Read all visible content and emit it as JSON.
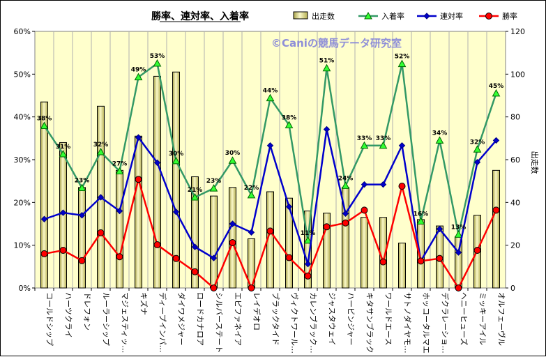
{
  "chart_data": {
    "type": "bar+line",
    "title": "勝率、連対率、入着率",
    "watermark": "©Caniの競馬データ研究室",
    "categories": [
      "コールドシップ",
      "ハーツクライ",
      "ドレフォン",
      "ルーラーシップ",
      "マジェスティッ…",
      "キズナ",
      "ディープインパ…",
      "ダイワメジャー",
      "ロードカナロア",
      "シルバーステート",
      "エピファネイア",
      "レイデオロ",
      "ブラックタイド",
      "ヴィクトワール…",
      "カレンブラック…",
      "ジャスタウェイ",
      "ハービンジャー",
      "キタサンブラック",
      "ワールドエース",
      "サトノダイヤモ…",
      "ホッコータルマエ",
      "デクラレーショ…",
      "ヘニーヒューズ",
      "ミッキーアイル",
      "オルフェーヴル"
    ],
    "left_axis": {
      "min": 0,
      "max": 60,
      "step": 10,
      "tick_labels": [
        "0%",
        "10%",
        "20%",
        "30%",
        "40%",
        "50%",
        "60%"
      ]
    },
    "right_axis": {
      "min": 0,
      "max": 120,
      "step": 20,
      "label": "出走数",
      "tick_labels": [
        "0",
        "20",
        "40",
        "60",
        "80",
        "100",
        "120"
      ]
    },
    "legend_position": "top",
    "grid": "vertical",
    "series": [
      {
        "name": "出走数",
        "kind": "bar",
        "axis": "right",
        "color": "#e8e6a0",
        "values": [
          87,
          68,
          47,
          85,
          55,
          71,
          99,
          101,
          52,
          43,
          47,
          23,
          45,
          42,
          36,
          35,
          47,
          33,
          33,
          21,
          32,
          29,
          24,
          34,
          55
        ]
      },
      {
        "name": "入着率",
        "kind": "line",
        "axis": "left",
        "color": "#339966",
        "marker": "triangle",
        "values": [
          37.9,
          31.3,
          23.4,
          31.8,
          27.3,
          49.3,
          52.5,
          29.7,
          21.2,
          23.3,
          29.8,
          21.7,
          44.4,
          38.1,
          11.1,
          51.4,
          23.9,
          33.3,
          33.3,
          52.4,
          15.6,
          34.5,
          12.5,
          32.4,
          45.5
        ],
        "data_labels": [
          "38%",
          "31%",
          "23%",
          "32%",
          "27%",
          "49%",
          "53%",
          "30%",
          "21%",
          "23%",
          "30%",
          "22%",
          "44%",
          "38%",
          "11%",
          "51%",
          "24%",
          "33%",
          "33%",
          "52%",
          "16%",
          "34%",
          "13%",
          "32%",
          "45%"
        ]
      },
      {
        "name": "連対率",
        "kind": "line",
        "axis": "left",
        "color": "#0000cc",
        "marker": "diamond",
        "values": [
          16.1,
          17.6,
          17.0,
          21.2,
          18.0,
          35.2,
          29.3,
          17.8,
          9.6,
          7.0,
          15.0,
          13.0,
          33.3,
          19.0,
          5.6,
          37.1,
          17.4,
          24.2,
          24.2,
          33.3,
          6.3,
          13.8,
          8.3,
          29.4,
          34.5
        ]
      },
      {
        "name": "勝率",
        "kind": "line",
        "axis": "left",
        "color": "#ff0000",
        "marker": "circle",
        "values": [
          8.0,
          8.8,
          6.4,
          12.9,
          7.3,
          25.4,
          10.1,
          6.9,
          3.8,
          0.0,
          10.6,
          0.0,
          13.3,
          7.1,
          2.8,
          14.3,
          15.2,
          18.2,
          6.1,
          23.8,
          6.3,
          6.9,
          0.0,
          8.8,
          18.2
        ]
      }
    ]
  }
}
